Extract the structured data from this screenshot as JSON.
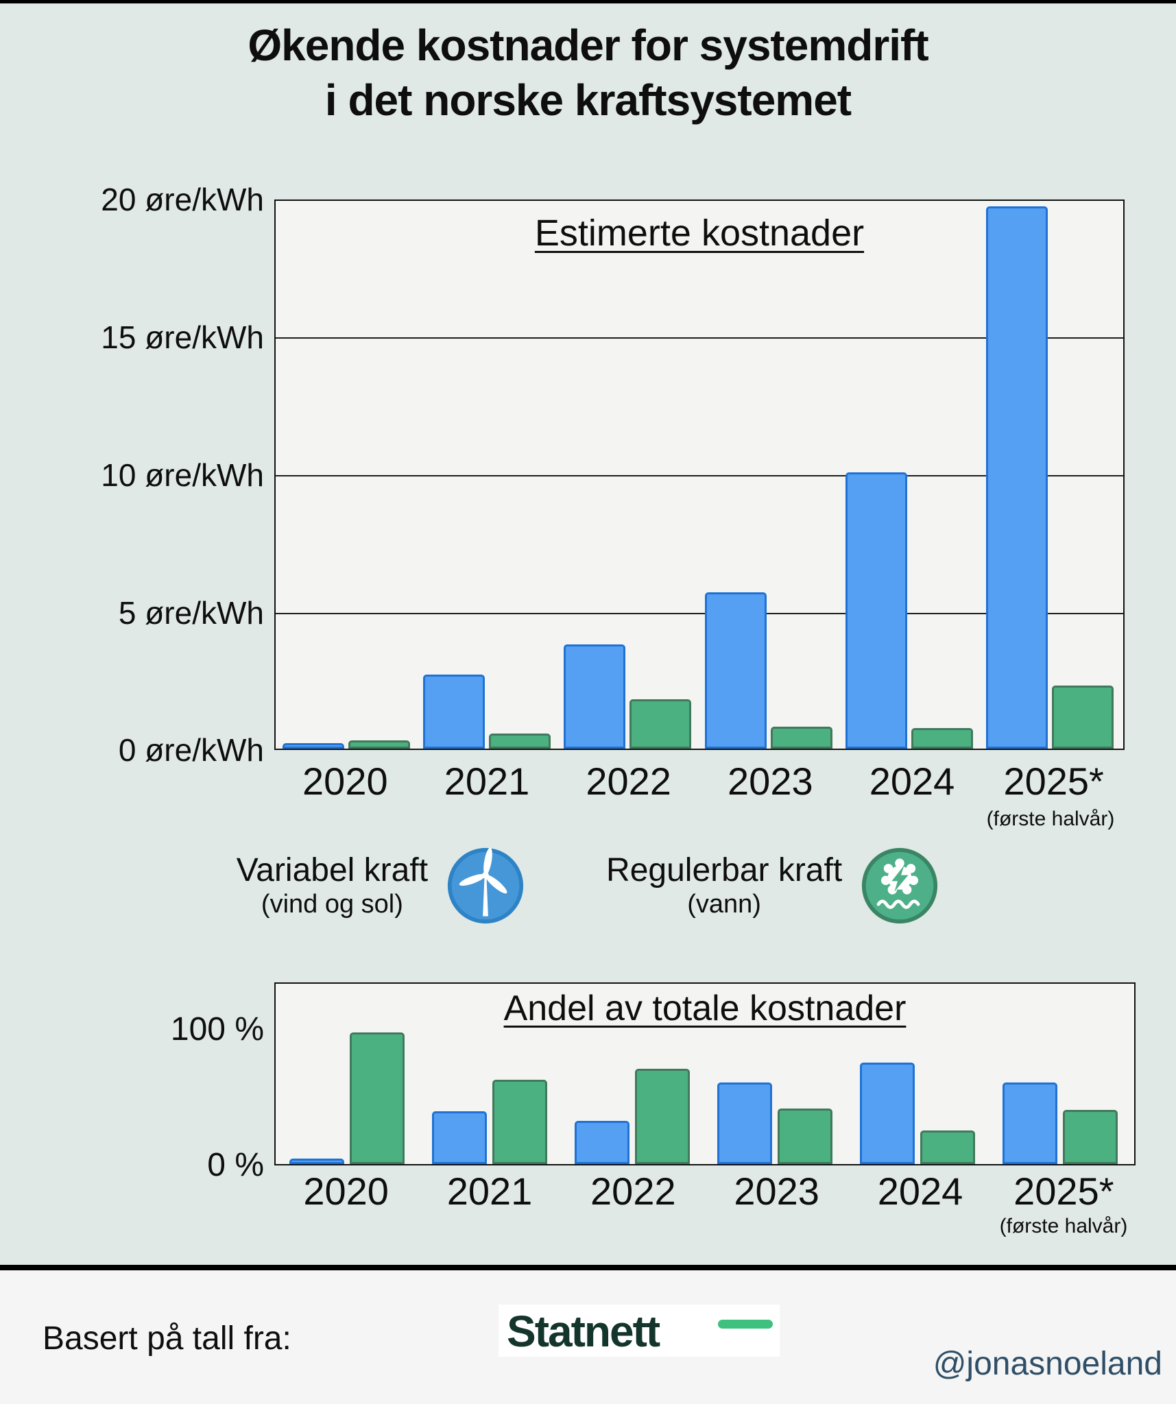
{
  "page": {
    "title_line1": "Økende kostnader for systemdrift",
    "title_line2": "i det norske kraftsystemet"
  },
  "colors": {
    "background": "#e0e9e5",
    "plot_background": "#f4f5f3",
    "variable_fill": "#55a0f2",
    "variable_border": "#1f72d4",
    "regulable_fill": "#4bb181",
    "regulable_border": "#41795c",
    "statnett_dark_green": "#14352b",
    "statnett_mint_dash": "#3ec07e",
    "handle_blue": "#2f4e67"
  },
  "legend": {
    "items": [
      {
        "label": "Variabel kraft",
        "sublabel": "(vind og sol)",
        "icon": "wind-turbine-icon"
      },
      {
        "label": "Regulerbar kraft",
        "sublabel": "(vann)",
        "icon": "hydro-turbine-icon"
      }
    ]
  },
  "chart_data": [
    {
      "type": "bar",
      "title": "Estimerte kostnader",
      "categories": [
        "2020",
        "2021",
        "2022",
        "2023",
        "2024",
        "2025*"
      ],
      "category_note": "(første halvår)",
      "series": [
        {
          "name": "Variabel kraft (vind og sol)",
          "color": "#55a0f2",
          "border_color": "#1f72d4",
          "values": [
            0.2,
            2.7,
            3.8,
            5.7,
            10.1,
            19.8
          ]
        },
        {
          "name": "Regulerbar kraft (vann)",
          "color": "#4bb181",
          "border_color": "#41795c",
          "values": [
            0.3,
            0.55,
            1.8,
            0.8,
            0.75,
            2.3
          ]
        }
      ],
      "ylabel": "øre/kWh",
      "ylim": [
        0,
        20
      ],
      "grid": true,
      "ytick_labels": [
        "20 øre/kWh",
        "15 øre/kWh",
        "10 øre/kWh",
        "5 øre/kWh",
        "0 øre/kWh"
      ]
    },
    {
      "type": "bar",
      "title": "Andel av totale kostnader",
      "categories": [
        "2020",
        "2021",
        "2022",
        "2023",
        "2024",
        "2025*"
      ],
      "category_note": "(første halvår)",
      "series": [
        {
          "name": "Variabel kraft (vind og sol)",
          "color": "#55a0f2",
          "border_color": "#1f72d4",
          "values": [
            4,
            39,
            32,
            60,
            75,
            60
          ]
        },
        {
          "name": "Regulerbar kraft (vann)",
          "color": "#4bb181",
          "border_color": "#41795c",
          "values": [
            97,
            62,
            70,
            41,
            25,
            40
          ]
        }
      ],
      "ylabel": "%",
      "ylim": [
        0,
        135
      ],
      "grid": false,
      "ytick_labels": [
        "100 %",
        "0 %"
      ]
    }
  ],
  "footer": {
    "source_label": "Basert på tall fra:",
    "source_logo": "Statnett",
    "handle": "@jonasnoeland"
  }
}
